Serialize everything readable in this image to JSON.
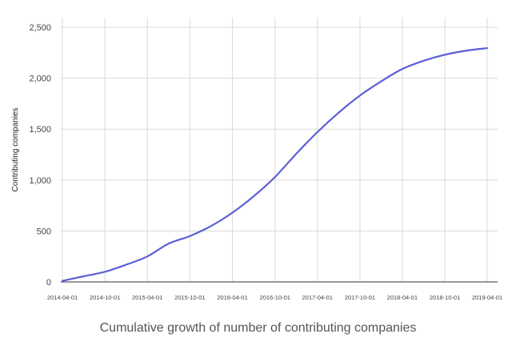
{
  "chart_data": {
    "type": "line",
    "title": "Cumulative growth of number of contributing companies",
    "xlabel": "",
    "ylabel": "Contributing companies",
    "x_ticks": [
      "2014-04-01",
      "2014-10-01",
      "2015-04-01",
      "2015-10-01",
      "2016-04-01",
      "2016-10-01",
      "2017-04-01",
      "2017-10-01",
      "2018-04-01",
      "2018-10-01",
      "2019-04-01"
    ],
    "y_ticks": [
      "0",
      "500",
      "1,000",
      "1,500",
      "2,000",
      "2,500"
    ],
    "ylim": [
      0,
      2500
    ],
    "grid": true,
    "legend": "none",
    "series": [
      {
        "color": "#5b5fd6",
        "x": [
          "2014-04-01",
          "2014-07-01",
          "2014-10-01",
          "2015-01-01",
          "2015-04-01",
          "2015-07-01",
          "2015-10-01",
          "2016-01-01",
          "2016-04-01",
          "2016-07-01",
          "2016-10-01",
          "2017-01-01",
          "2017-04-01",
          "2017-07-01",
          "2017-10-01",
          "2018-01-01",
          "2018-04-01",
          "2018-07-01",
          "2018-10-01",
          "2019-01-01",
          "2019-04-01"
        ],
        "values": [
          10,
          55,
          100,
          170,
          250,
          375,
          450,
          550,
          680,
          840,
          1030,
          1260,
          1470,
          1660,
          1830,
          1970,
          2090,
          2170,
          2230,
          2270,
          2295
        ]
      }
    ]
  }
}
